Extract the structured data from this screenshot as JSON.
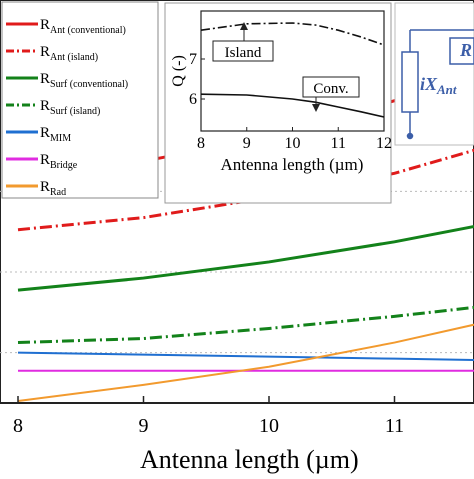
{
  "chart_data": {
    "type": "line",
    "xlabel_parts": [
      "Antenna length (",
      "µm",
      ")"
    ],
    "x_ticks": [
      8,
      9,
      10,
      11
    ],
    "xlim": [
      8,
      12
    ],
    "ylim": [
      0,
      10
    ],
    "grid": true,
    "legend_position": "top-left",
    "series": [
      {
        "name": "R",
        "sub": "Ant (conventional)",
        "color": "#e01b1b",
        "dash": "solid",
        "x": [
          8,
          9,
          10,
          11,
          12
        ],
        "y": [
          5.6,
          6.0,
          6.6,
          7.5,
          8.8
        ]
      },
      {
        "name": "R",
        "sub": "Ant (island)",
        "color": "#e01b1b",
        "dash": "dashdot",
        "x": [
          8,
          9,
          10,
          11,
          12
        ],
        "y": [
          4.3,
          4.6,
          5.1,
          5.7,
          6.6
        ]
      },
      {
        "name": "R",
        "sub": "Surf (conventional)",
        "color": "#13821a",
        "dash": "solid",
        "x": [
          8,
          9,
          10,
          11,
          12
        ],
        "y": [
          2.8,
          3.1,
          3.5,
          4.0,
          4.6
        ]
      },
      {
        "name": "R",
        "sub": "Surf (island)",
        "color": "#13821a",
        "dash": "dashdot",
        "x": [
          8,
          9,
          10,
          11,
          12
        ],
        "y": [
          1.5,
          1.6,
          1.85,
          2.15,
          2.5
        ]
      },
      {
        "name": "R",
        "sub": "MIM",
        "color": "#1f6fd1",
        "dash": "solid",
        "x": [
          8,
          9,
          10,
          11,
          12
        ],
        "y": [
          1.25,
          1.2,
          1.15,
          1.1,
          1.05
        ]
      },
      {
        "name": "R",
        "sub": "Bridge",
        "color": "#e02ce0",
        "dash": "solid",
        "x": [
          8,
          9,
          10,
          11,
          12
        ],
        "y": [
          0.8,
          0.8,
          0.8,
          0.8,
          0.8
        ]
      },
      {
        "name": "R",
        "sub": "Rad",
        "color": "#f29a2e",
        "dash": "solid",
        "x": [
          8,
          9,
          10,
          11,
          12
        ],
        "y": [
          0.05,
          0.45,
          0.9,
          1.5,
          2.2
        ]
      }
    ],
    "inset": {
      "ylabel": "Q (-)",
      "xlabel_parts": [
        "Antenna length (",
        "µm",
        ")"
      ],
      "x_ticks": [
        8,
        9,
        10,
        11,
        12
      ],
      "y_ticks": [
        6,
        7
      ],
      "xlim": [
        8,
        12
      ],
      "ylim": [
        5.2,
        8.2
      ],
      "series": [
        {
          "name": "Island",
          "dash": "dashdot",
          "x": [
            8,
            9,
            10,
            10.5,
            11,
            11.5,
            12
          ],
          "y": [
            7.72,
            7.88,
            7.9,
            7.85,
            7.72,
            7.55,
            7.35
          ]
        },
        {
          "name": "Conv.",
          "dash": "solid",
          "x": [
            8,
            9,
            10,
            10.5,
            11,
            11.5,
            12
          ],
          "y": [
            6.12,
            6.1,
            6.0,
            5.92,
            5.8,
            5.68,
            5.55
          ]
        }
      ]
    }
  },
  "circuit": {
    "label_main": "iX",
    "label_sub": "Ant",
    "label_r": "R"
  }
}
